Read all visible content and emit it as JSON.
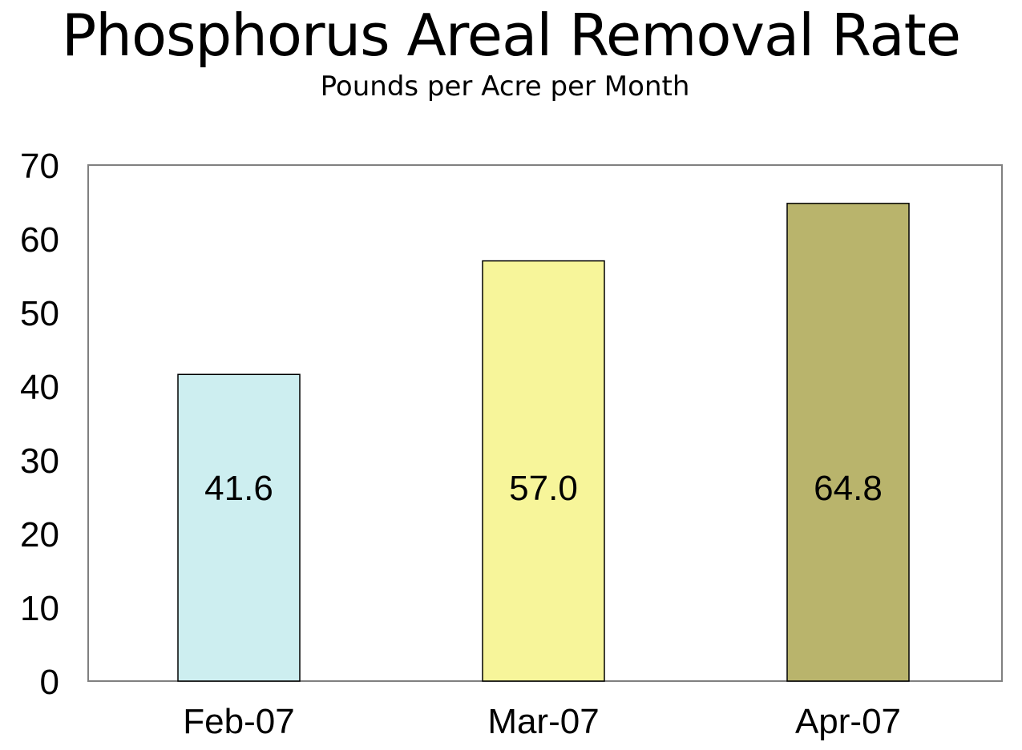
{
  "chart_data": {
    "type": "bar",
    "title": "Phosphorus Areal Removal Rate",
    "subtitle": "Pounds per Acre per Month",
    "categories": [
      "Feb-07",
      "Mar-07",
      "Apr-07"
    ],
    "values": [
      41.6,
      57.0,
      64.8
    ],
    "value_labels": [
      "41.6",
      "57.0",
      "64.8"
    ],
    "bar_colors": [
      "#cdeef0",
      "#f7f59a",
      "#b9b46c"
    ],
    "ylim": [
      0,
      70
    ],
    "yticks": [
      0,
      10,
      20,
      30,
      40,
      50,
      60,
      70
    ],
    "xlabel": "",
    "ylabel": "",
    "grid": false,
    "legend": "none"
  }
}
